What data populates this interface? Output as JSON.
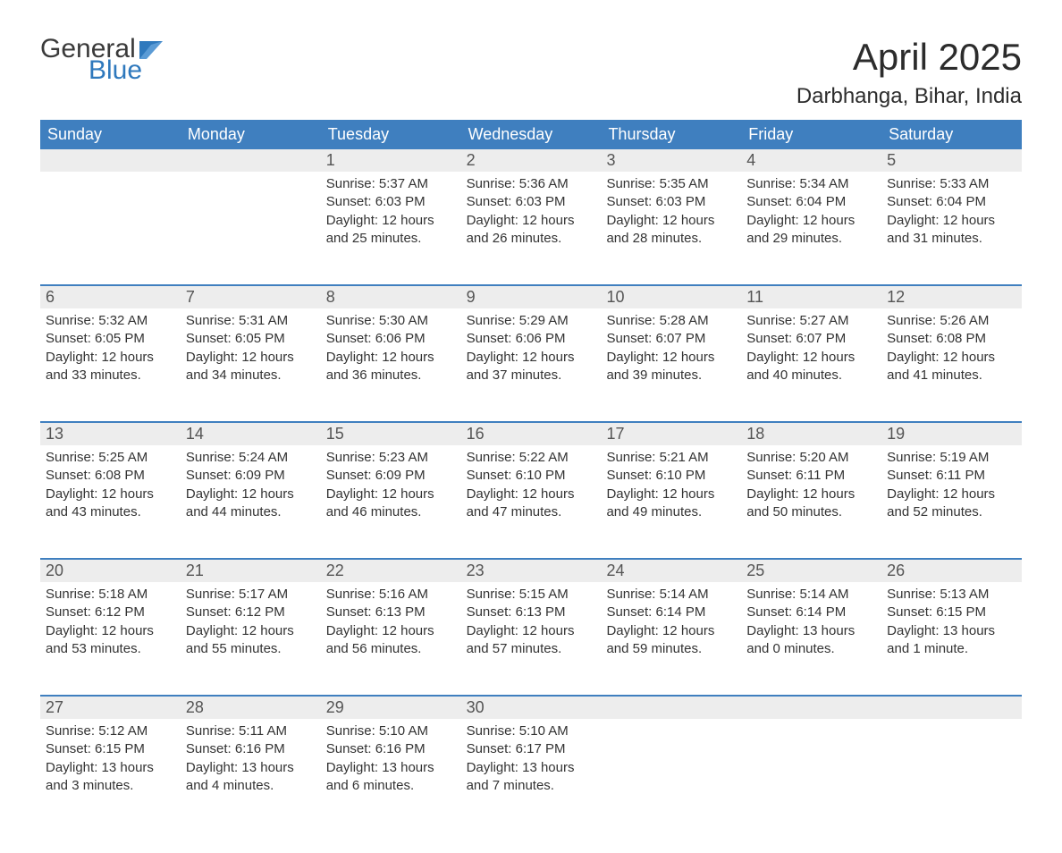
{
  "logo": {
    "word1": "General",
    "word2": "Blue",
    "flag_color": "#2f79bd",
    "word1_color": "#3a3a3a",
    "word2_color": "#2f79bd"
  },
  "title": "April 2025",
  "subtitle": "Darbhanga, Bihar, India",
  "colors": {
    "header_bg": "#3f7fbf",
    "header_text": "#ffffff",
    "daynum_bg": "#ededed",
    "week_border": "#3f7fbf",
    "body_text": "#333333",
    "background": "#ffffff"
  },
  "typography": {
    "title_fontsize": 42,
    "subtitle_fontsize": 24,
    "dayhead_fontsize": 18,
    "daynum_fontsize": 18,
    "body_fontsize": 15,
    "font_family": "Arial"
  },
  "day_headers": [
    "Sunday",
    "Monday",
    "Tuesday",
    "Wednesday",
    "Thursday",
    "Friday",
    "Saturday"
  ],
  "weeks": [
    [
      {
        "empty": true
      },
      {
        "empty": true
      },
      {
        "day": "1",
        "sunrise": "Sunrise: 5:37 AM",
        "sunset": "Sunset: 6:03 PM",
        "daylight1": "Daylight: 12 hours",
        "daylight2": "and 25 minutes."
      },
      {
        "day": "2",
        "sunrise": "Sunrise: 5:36 AM",
        "sunset": "Sunset: 6:03 PM",
        "daylight1": "Daylight: 12 hours",
        "daylight2": "and 26 minutes."
      },
      {
        "day": "3",
        "sunrise": "Sunrise: 5:35 AM",
        "sunset": "Sunset: 6:03 PM",
        "daylight1": "Daylight: 12 hours",
        "daylight2": "and 28 minutes."
      },
      {
        "day": "4",
        "sunrise": "Sunrise: 5:34 AM",
        "sunset": "Sunset: 6:04 PM",
        "daylight1": "Daylight: 12 hours",
        "daylight2": "and 29 minutes."
      },
      {
        "day": "5",
        "sunrise": "Sunrise: 5:33 AM",
        "sunset": "Sunset: 6:04 PM",
        "daylight1": "Daylight: 12 hours",
        "daylight2": "and 31 minutes."
      }
    ],
    [
      {
        "day": "6",
        "sunrise": "Sunrise: 5:32 AM",
        "sunset": "Sunset: 6:05 PM",
        "daylight1": "Daylight: 12 hours",
        "daylight2": "and 33 minutes."
      },
      {
        "day": "7",
        "sunrise": "Sunrise: 5:31 AM",
        "sunset": "Sunset: 6:05 PM",
        "daylight1": "Daylight: 12 hours",
        "daylight2": "and 34 minutes."
      },
      {
        "day": "8",
        "sunrise": "Sunrise: 5:30 AM",
        "sunset": "Sunset: 6:06 PM",
        "daylight1": "Daylight: 12 hours",
        "daylight2": "and 36 minutes."
      },
      {
        "day": "9",
        "sunrise": "Sunrise: 5:29 AM",
        "sunset": "Sunset: 6:06 PM",
        "daylight1": "Daylight: 12 hours",
        "daylight2": "and 37 minutes."
      },
      {
        "day": "10",
        "sunrise": "Sunrise: 5:28 AM",
        "sunset": "Sunset: 6:07 PM",
        "daylight1": "Daylight: 12 hours",
        "daylight2": "and 39 minutes."
      },
      {
        "day": "11",
        "sunrise": "Sunrise: 5:27 AM",
        "sunset": "Sunset: 6:07 PM",
        "daylight1": "Daylight: 12 hours",
        "daylight2": "and 40 minutes."
      },
      {
        "day": "12",
        "sunrise": "Sunrise: 5:26 AM",
        "sunset": "Sunset: 6:08 PM",
        "daylight1": "Daylight: 12 hours",
        "daylight2": "and 41 minutes."
      }
    ],
    [
      {
        "day": "13",
        "sunrise": "Sunrise: 5:25 AM",
        "sunset": "Sunset: 6:08 PM",
        "daylight1": "Daylight: 12 hours",
        "daylight2": "and 43 minutes."
      },
      {
        "day": "14",
        "sunrise": "Sunrise: 5:24 AM",
        "sunset": "Sunset: 6:09 PM",
        "daylight1": "Daylight: 12 hours",
        "daylight2": "and 44 minutes."
      },
      {
        "day": "15",
        "sunrise": "Sunrise: 5:23 AM",
        "sunset": "Sunset: 6:09 PM",
        "daylight1": "Daylight: 12 hours",
        "daylight2": "and 46 minutes."
      },
      {
        "day": "16",
        "sunrise": "Sunrise: 5:22 AM",
        "sunset": "Sunset: 6:10 PM",
        "daylight1": "Daylight: 12 hours",
        "daylight2": "and 47 minutes."
      },
      {
        "day": "17",
        "sunrise": "Sunrise: 5:21 AM",
        "sunset": "Sunset: 6:10 PM",
        "daylight1": "Daylight: 12 hours",
        "daylight2": "and 49 minutes."
      },
      {
        "day": "18",
        "sunrise": "Sunrise: 5:20 AM",
        "sunset": "Sunset: 6:11 PM",
        "daylight1": "Daylight: 12 hours",
        "daylight2": "and 50 minutes."
      },
      {
        "day": "19",
        "sunrise": "Sunrise: 5:19 AM",
        "sunset": "Sunset: 6:11 PM",
        "daylight1": "Daylight: 12 hours",
        "daylight2": "and 52 minutes."
      }
    ],
    [
      {
        "day": "20",
        "sunrise": "Sunrise: 5:18 AM",
        "sunset": "Sunset: 6:12 PM",
        "daylight1": "Daylight: 12 hours",
        "daylight2": "and 53 minutes."
      },
      {
        "day": "21",
        "sunrise": "Sunrise: 5:17 AM",
        "sunset": "Sunset: 6:12 PM",
        "daylight1": "Daylight: 12 hours",
        "daylight2": "and 55 minutes."
      },
      {
        "day": "22",
        "sunrise": "Sunrise: 5:16 AM",
        "sunset": "Sunset: 6:13 PM",
        "daylight1": "Daylight: 12 hours",
        "daylight2": "and 56 minutes."
      },
      {
        "day": "23",
        "sunrise": "Sunrise: 5:15 AM",
        "sunset": "Sunset: 6:13 PM",
        "daylight1": "Daylight: 12 hours",
        "daylight2": "and 57 minutes."
      },
      {
        "day": "24",
        "sunrise": "Sunrise: 5:14 AM",
        "sunset": "Sunset: 6:14 PM",
        "daylight1": "Daylight: 12 hours",
        "daylight2": "and 59 minutes."
      },
      {
        "day": "25",
        "sunrise": "Sunrise: 5:14 AM",
        "sunset": "Sunset: 6:14 PM",
        "daylight1": "Daylight: 13 hours",
        "daylight2": "and 0 minutes."
      },
      {
        "day": "26",
        "sunrise": "Sunrise: 5:13 AM",
        "sunset": "Sunset: 6:15 PM",
        "daylight1": "Daylight: 13 hours",
        "daylight2": "and 1 minute."
      }
    ],
    [
      {
        "day": "27",
        "sunrise": "Sunrise: 5:12 AM",
        "sunset": "Sunset: 6:15 PM",
        "daylight1": "Daylight: 13 hours",
        "daylight2": "and 3 minutes."
      },
      {
        "day": "28",
        "sunrise": "Sunrise: 5:11 AM",
        "sunset": "Sunset: 6:16 PM",
        "daylight1": "Daylight: 13 hours",
        "daylight2": "and 4 minutes."
      },
      {
        "day": "29",
        "sunrise": "Sunrise: 5:10 AM",
        "sunset": "Sunset: 6:16 PM",
        "daylight1": "Daylight: 13 hours",
        "daylight2": "and 6 minutes."
      },
      {
        "day": "30",
        "sunrise": "Sunrise: 5:10 AM",
        "sunset": "Sunset: 6:17 PM",
        "daylight1": "Daylight: 13 hours",
        "daylight2": "and 7 minutes."
      },
      {
        "empty": true
      },
      {
        "empty": true
      },
      {
        "empty": true
      }
    ]
  ]
}
